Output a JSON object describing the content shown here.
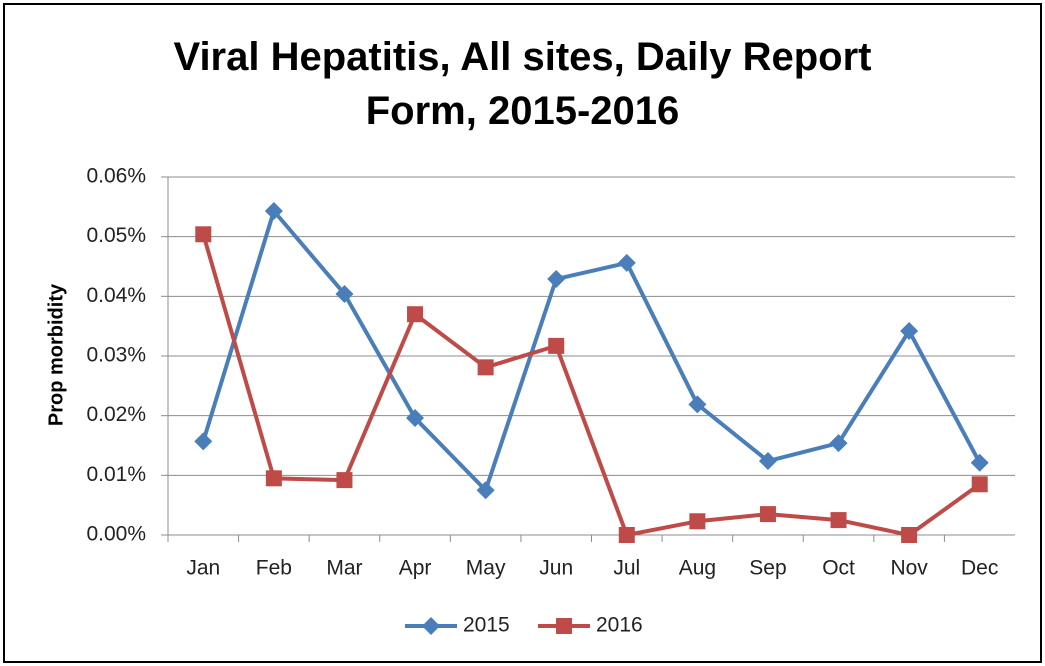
{
  "chart_data": {
    "type": "line",
    "title": "Viral Hepatitis, All sites, Daily Report Form, 2015-2016",
    "y_label": "Prop morbidity",
    "categories": [
      "Jan",
      "Feb",
      "Mar",
      "Apr",
      "May",
      "Jun",
      "Jul",
      "Aug",
      "Sep",
      "Oct",
      "Nov",
      "Dec"
    ],
    "series": [
      {
        "name": "2015",
        "color": "#4a7ebb",
        "marker": "diamond",
        "values": [
          0.0157,
          0.0543,
          0.0404,
          0.0196,
          0.0075,
          0.0429,
          0.0456,
          0.0219,
          0.0124,
          0.0154,
          0.0342,
          0.0121
        ]
      },
      {
        "name": "2016",
        "color": "#be4b48",
        "marker": "square",
        "values": [
          0.0504,
          0.0095,
          0.0092,
          0.037,
          0.0281,
          0.0317,
          0,
          0.0023,
          0.0035,
          0.0025,
          0,
          0.0085
        ]
      }
    ],
    "ylim": [
      0,
      0.06
    ],
    "yticks": [
      {
        "value": 0,
        "label": "0.00%"
      },
      {
        "value": 0.01,
        "label": "0.01%"
      },
      {
        "value": 0.02,
        "label": "0.02%"
      },
      {
        "value": 0.03,
        "label": "0.03%"
      },
      {
        "value": 0.04,
        "label": "0.04%"
      },
      {
        "value": 0.05,
        "label": "0.05%"
      },
      {
        "value": 0.06,
        "label": "0.06%"
      }
    ],
    "grid": true,
    "legend": "bottom"
  }
}
